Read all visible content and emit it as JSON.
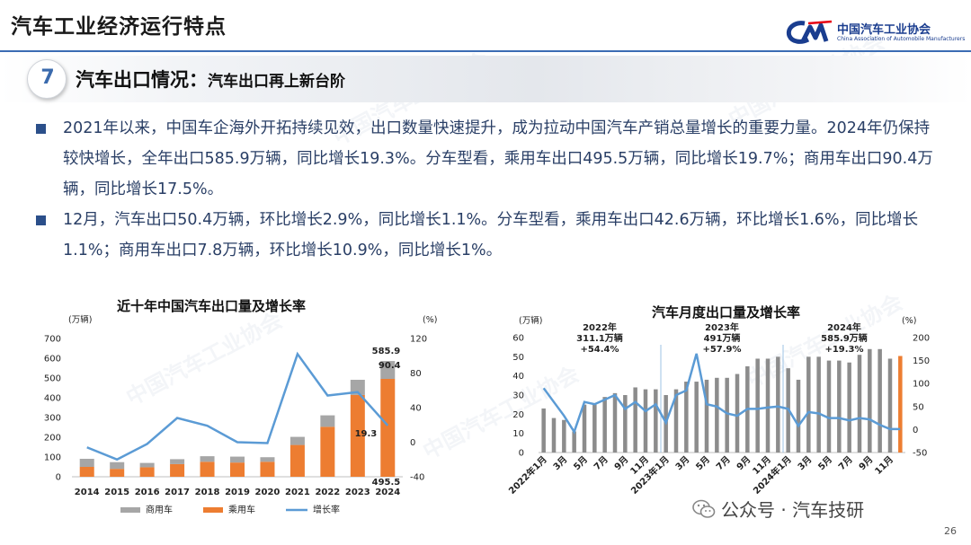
{
  "header": {
    "title": "汽车工业经济运行特点",
    "logo_cn": "中国汽车工业协会",
    "logo_en": "China Association of Automobile Manufacturers"
  },
  "section": {
    "number": "7",
    "title": "汽车出口情况：",
    "subtitle": "汽车出口再上新台阶"
  },
  "bullets": [
    "2021年以来，中国车企海外开拓持续见效，出口数量快速提升，成为拉动中国汽车产销总量增长的重要力量。2024年仍保持较快增长，全年出口585.9万辆，同比增长19.3%。分车型看，乘用车出口495.5万辆，同比增长19.7%；商用车出口90.4万辆，同比增长17.5%。",
    "12月，汽车出口50.4万辆，环比增长2.9%，同比增长1.1%。分车型看，乘用车出口42.6万辆，环比增长1.6%，同比增长1.1%；商用车出口7.8万辆，环比增长10.9%，同比增长1%。"
  ],
  "watermark": "中国汽车工业协会",
  "footer": {
    "wechat": "公众号 · 汽车技研",
    "page": "26"
  },
  "colors": {
    "commercial": "#a6a6a6",
    "passenger": "#ed7d31",
    "growth": "#5b9bd5",
    "monthly_bar": "#8c8c8c",
    "accent": "#2b4f8a"
  },
  "chart_data": [
    {
      "type": "bar",
      "stacked": true,
      "title": "近十年中国汽车出口量及增长率",
      "y_unit": "(万辆)",
      "y2_unit": "(%)",
      "categories": [
        "2014",
        "2015",
        "2016",
        "2017",
        "2018",
        "2019",
        "2020",
        "2021",
        "2022",
        "2023",
        "2024"
      ],
      "ylim": [
        0,
        700
      ],
      "yticks": [
        "0",
        "100",
        "200",
        "300",
        "400",
        "500",
        "600",
        "700"
      ],
      "y2lim": [
        -40,
        120
      ],
      "y2ticks": [
        "-40",
        "0",
        "40",
        "80",
        "120"
      ],
      "series": [
        {
          "name": "乘用车",
          "values": [
            50,
            40,
            48,
            64,
            76,
            72,
            76,
            161,
            253,
            414,
            495.5
          ]
        },
        {
          "name": "商用车",
          "values": [
            41,
            34,
            22,
            25,
            28,
            30,
            23,
            41,
            58,
            77,
            90.4
          ]
        },
        {
          "name": "增长率",
          "axis": "secondary",
          "values": [
            -6,
            -20,
            -2,
            28,
            19,
            0,
            -1,
            102,
            54,
            58,
            19.3
          ]
        }
      ],
      "annotations": [
        "585.9",
        "90.4",
        "19.3",
        "495.5"
      ],
      "legend": [
        "商用车",
        "乘用车",
        "增长率"
      ],
      "legend_position": "bottom"
    },
    {
      "type": "bar",
      "title": "汽车月度出口量及增长率",
      "y_unit": "(万辆)",
      "y2_unit": "(%)",
      "ylim": [
        0,
        60
      ],
      "yticks": [
        "0",
        "10",
        "20",
        "30",
        "40",
        "50",
        "60"
      ],
      "y2lim": [
        -50,
        200
      ],
      "y2ticks": [
        "-50",
        "0",
        "50",
        "100",
        "150",
        "200"
      ],
      "x": [
        "2022年1月",
        "2月",
        "3月",
        "4月",
        "5月",
        "6月",
        "7月",
        "8月",
        "9月",
        "10月",
        "11月",
        "12月",
        "2023年1月",
        "2月",
        "3月",
        "4月",
        "5月",
        "6月",
        "7月",
        "8月",
        "9月",
        "10月",
        "11月",
        "12月",
        "2024年1月",
        "2月",
        "3月",
        "4月",
        "5月",
        "6月",
        "7月",
        "8月",
        "9月",
        "10月",
        "11月",
        "12月"
      ],
      "x_tick_labels": [
        "2022年1月",
        "3月",
        "5月",
        "7月",
        "9月",
        "11月",
        "2023年1月",
        "3月",
        "5月",
        "7月",
        "9月",
        "11月",
        "2024年1月",
        "3月",
        "5月",
        "7月",
        "9月",
        "11月"
      ],
      "series": [
        {
          "name": "出口量",
          "values": [
            23,
            18,
            17,
            11,
            25,
            25,
            29,
            31,
            30,
            34,
            33,
            33,
            30,
            33,
            37,
            37,
            38,
            39,
            39,
            41,
            45,
            49,
            49,
            50,
            44,
            38,
            50,
            50,
            48,
            48,
            47,
            51,
            54,
            54,
            49,
            50.4
          ]
        },
        {
          "name": "增长率",
          "axis": "secondary",
          "values": [
            90,
            60,
            30,
            -5,
            60,
            55,
            65,
            75,
            45,
            60,
            40,
            55,
            15,
            75,
            85,
            165,
            55,
            50,
            35,
            30,
            45,
            45,
            48,
            50,
            45,
            8,
            38,
            35,
            25,
            25,
            20,
            25,
            22,
            10,
            1,
            1
          ]
        }
      ],
      "highlight_last_bar_color": "#ed7d31",
      "annotations": [
        {
          "label": "2022年",
          "value": "311.1万辆",
          "growth": "+54.4%"
        },
        {
          "label": "2023年",
          "value": "491万辆",
          "growth": "+57.9%"
        },
        {
          "label": "2024年",
          "value": "585.9万辆",
          "growth": "+19.3%"
        }
      ]
    }
  ]
}
